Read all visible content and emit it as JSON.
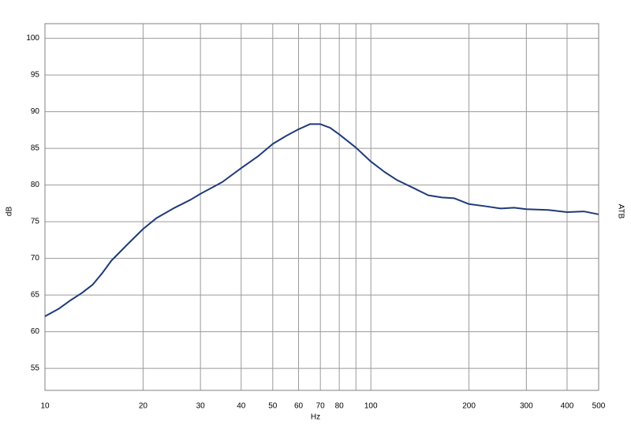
{
  "chart_data": {
    "type": "line",
    "x_label": "Hz",
    "y_label": "dB",
    "y2_label": "ATB",
    "xscale": "log",
    "grid": true,
    "xlim": [
      10,
      500
    ],
    "ylim": [
      52,
      102
    ],
    "xticks": [
      10,
      20,
      30,
      40,
      50,
      60,
      70,
      80,
      {
        "value": 90,
        "label": null
      },
      100,
      200,
      300,
      400,
      500
    ],
    "yticks": [
      55,
      60,
      65,
      70,
      75,
      80,
      85,
      90,
      95,
      100
    ],
    "x": [
      10,
      11,
      12,
      13,
      14,
      15,
      16,
      18,
      20,
      22,
      25,
      28,
      30,
      35,
      40,
      45,
      50,
      55,
      60,
      65,
      70,
      75,
      80,
      90,
      100,
      110,
      120,
      135,
      150,
      165,
      180,
      200,
      225,
      250,
      275,
      300,
      350,
      400,
      450,
      500
    ],
    "series": [
      {
        "color": "#1f3a7a",
        "values": [
          62.1,
          63.1,
          64.3,
          65.3,
          66.4,
          68.0,
          69.7,
          72.0,
          74.0,
          75.5,
          76.9,
          78.0,
          78.8,
          80.4,
          82.3,
          83.9,
          85.6,
          86.7,
          87.6,
          88.3,
          88.3,
          87.8,
          86.9,
          85.1,
          83.2,
          81.8,
          80.7,
          79.6,
          78.6,
          78.3,
          78.2,
          77.4,
          77.1,
          76.8,
          76.9,
          76.7,
          76.6,
          76.3,
          76.4,
          76.0
        ]
      }
    ]
  }
}
